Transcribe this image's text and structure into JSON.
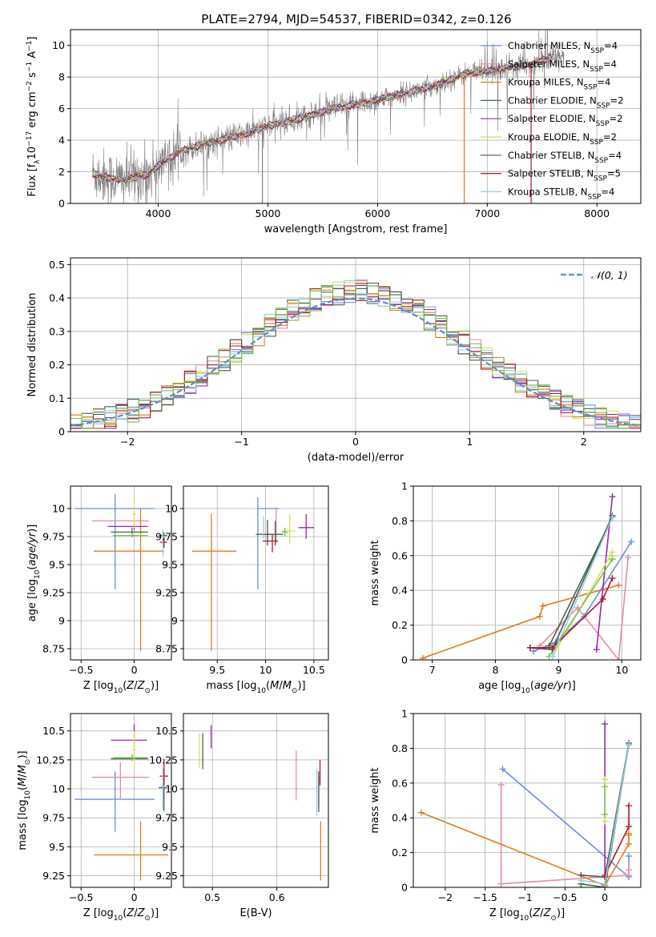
{
  "figure": {
    "title": "PLATE=2794, MJD=54537, FIBERID=0342, z=0.126",
    "colors": {
      "Chabrier MILES": "#6a8fdc",
      "Salpeter MILES": "#e88aa8",
      "Kroupa MILES": "#e07b1f",
      "Chabrier ELODIE": "#3e6b45",
      "Salpeter ELODIE": "#9c27b0",
      "Kroupa ELODIE": "#d9e05a",
      "Chabrier STELIB": "#555555",
      "Salpeter STELIB": "#b2182b",
      "Kroupa STELIB": "#8fd0e0",
      "green_extra": "#7cc242",
      "data": "#808080",
      "gaussian": "#5b8ed8"
    }
  },
  "chart_data": [
    {
      "id": "spectrum",
      "type": "line",
      "xlabel": "wavelength [Angstrom, rest frame]",
      "ylabel": "Flux [f_λ 10^-17 erg cm^-2 s^-1 A^-1]",
      "xlim": [
        3200,
        8400
      ],
      "ylim": [
        0,
        11
      ],
      "xticks": [
        4000,
        5000,
        6000,
        7000,
        8000
      ],
      "yticks": [
        0,
        2,
        4,
        6,
        8,
        10
      ],
      "legend_position": "upper right",
      "legend": [
        {
          "label": "Chabrier MILES, N_SSP=4",
          "key": "Chabrier MILES"
        },
        {
          "label": "Salpeter MILES, N_SSP=4",
          "key": "Salpeter MILES"
        },
        {
          "label": "Kroupa MILES, N_SSP=4",
          "key": "Kroupa MILES"
        },
        {
          "label": "Chabrier ELODIE, N_SSP=2",
          "key": "Chabrier ELODIE"
        },
        {
          "label": "Salpeter ELODIE, N_SSP=2",
          "key": "Salpeter ELODIE"
        },
        {
          "label": "Kroupa ELODIE, N_SSP=2",
          "key": "Kroupa ELODIE"
        },
        {
          "label": "Chabrier STELIB, N_SSP=4",
          "key": "Chabrier STELIB"
        },
        {
          "label": "Salpeter STELIB, N_SSP=5",
          "key": "Salpeter STELIB"
        },
        {
          "label": "Kroupa STELIB, N_SSP=4",
          "key": "Kroupa STELIB"
        }
      ],
      "continuum": [
        [
          3400,
          1.9
        ],
        [
          3550,
          1.6
        ],
        [
          3700,
          1.5
        ],
        [
          3800,
          1.7
        ],
        [
          3900,
          1.8
        ],
        [
          4000,
          2.4
        ],
        [
          4200,
          3.3
        ],
        [
          4500,
          3.9
        ],
        [
          4800,
          4.4
        ],
        [
          5000,
          4.9
        ],
        [
          5300,
          5.4
        ],
        [
          5600,
          6.0
        ],
        [
          5900,
          6.4
        ],
        [
          6200,
          6.9
        ],
        [
          6500,
          7.4
        ],
        [
          6800,
          8.2
        ],
        [
          7100,
          8.5
        ],
        [
          7400,
          8.8
        ],
        [
          7600,
          9.3
        ]
      ]
    },
    {
      "id": "residuals",
      "type": "histogram",
      "xlabel": "(data-model)/error",
      "ylabel": "Normed distribution",
      "xlim": [
        -2.5,
        2.5
      ],
      "ylim": [
        0,
        0.52
      ],
      "xticks": [
        -2,
        -1,
        0,
        1,
        2
      ],
      "yticks": [
        0.0,
        0.1,
        0.2,
        0.3,
        0.4,
        0.5
      ],
      "legend_position": "upper right",
      "legend": [
        {
          "label": "𝒩(0, 1)",
          "key": "gaussian"
        }
      ],
      "bin_width": 0.1
    },
    {
      "id": "age_vs_Z",
      "type": "errorbar",
      "xlabel": "Z [log10(Z/Z⊙)]",
      "ylabel": "age  [log10(age/yr)]",
      "xlim": [
        -0.6,
        0.35
      ],
      "ylim": [
        8.65,
        10.2
      ],
      "xticks": [
        -0.5,
        0.0
      ],
      "yticks": [
        8.75,
        9.0,
        9.25,
        9.5,
        9.75,
        10.0
      ],
      "points": [
        {
          "key": "Chabrier MILES",
          "x": -0.18,
          "y": 10.0,
          "xerr": [
            0.38,
            0.37
          ],
          "yerr": [
            0.72,
            0.13
          ]
        },
        {
          "key": "Salpeter MILES",
          "x": -0.13,
          "y": 9.89,
          "xerr": [
            0.27,
            0.27
          ],
          "yerr": [
            0.0,
            0.0
          ]
        },
        {
          "key": "Kroupa MILES",
          "x": 0.06,
          "y": 9.62,
          "xerr": [
            0.44,
            0.22
          ],
          "yerr": [
            0.89,
            0.38
          ]
        },
        {
          "key": "Chabrier ELODIE",
          "x": -0.02,
          "y": 9.79,
          "xerr": [
            0.2,
            0.15
          ],
          "yerr": [
            0.04,
            0.04
          ]
        },
        {
          "key": "Salpeter ELODIE",
          "x": 0.0,
          "y": 9.84,
          "xerr": [
            0.25,
            0.13
          ],
          "yerr": [
            0.03,
            0.03
          ]
        },
        {
          "key": "Kroupa ELODIE",
          "x": 0.0,
          "y": 9.95,
          "xerr": [
            0.02,
            0.02
          ],
          "yerr": [
            0.12,
            0.15
          ]
        },
        {
          "key": "green_extra",
          "x": -0.02,
          "y": 9.76,
          "xerr": [
            0.18,
            0.15
          ],
          "yerr": [
            0.02,
            0.02
          ]
        },
        {
          "key": "Chabrier STELIB",
          "x": 0.28,
          "y": 9.76,
          "xerr": [
            0.05,
            0.03
          ],
          "yerr": [
            0.05,
            0.03
          ]
        },
        {
          "key": "Salpeter STELIB",
          "x": 0.28,
          "y": 9.7,
          "xerr": [
            0.04,
            0.03
          ],
          "yerr": [
            0.05,
            0.03
          ]
        },
        {
          "key": "Kroupa STELIB",
          "x": 0.27,
          "y": 9.75,
          "xerr": [
            0.02,
            0.02
          ],
          "yerr": [
            0.18,
            0.06
          ]
        }
      ]
    },
    {
      "id": "age_vs_mass",
      "type": "errorbar",
      "xlabel": "mass [log10(M/M⊙)]",
      "ylabel": "",
      "xlim": [
        9.15,
        10.65
      ],
      "ylim": [
        8.65,
        10.2
      ],
      "xticks": [
        9.5,
        10.0,
        10.5
      ],
      "yticks": [
        8.75,
        9.0,
        9.25,
        9.5,
        9.75,
        10.0
      ],
      "points": [
        {
          "key": "Chabrier MILES",
          "x": 9.92,
          "y": 10.0,
          "xerr": [
            0.0,
            0.22
          ],
          "yerr": [
            0.72,
            0.1
          ]
        },
        {
          "key": "Salpeter MILES",
          "x": 10.11,
          "y": 9.89,
          "xerr": [
            0.0,
            0.0
          ],
          "yerr": [
            0.2,
            0.12
          ]
        },
        {
          "key": "Kroupa MILES",
          "x": 9.44,
          "y": 9.62,
          "xerr": [
            0.2,
            0.26
          ],
          "yerr": [
            0.89,
            0.33
          ]
        },
        {
          "key": "Chabrier ELODIE",
          "x": 10.1,
          "y": 9.77,
          "xerr": [
            0.2,
            0.08
          ],
          "yerr": [
            0.1,
            0.12
          ]
        },
        {
          "key": "Salpeter ELODIE",
          "x": 10.42,
          "y": 9.83,
          "xerr": [
            0.08,
            0.08
          ],
          "yerr": [
            0.1,
            0.12
          ]
        },
        {
          "key": "Kroupa ELODIE",
          "x": 10.25,
          "y": 9.8,
          "xerr": [
            0.08,
            0.06
          ],
          "yerr": [
            0.12,
            0.15
          ]
        },
        {
          "key": "green_extra",
          "x": 10.2,
          "y": 9.79,
          "xerr": [
            0.03,
            0.03
          ],
          "yerr": [
            0.04,
            0.04
          ]
        },
        {
          "key": "Chabrier STELIB",
          "x": 10.02,
          "y": 9.77,
          "xerr": [
            0.05,
            0.03
          ],
          "yerr": [
            0.1,
            0.13
          ]
        },
        {
          "key": "Salpeter STELIB",
          "x": 10.07,
          "y": 9.71,
          "xerr": [
            0.1,
            0.06
          ],
          "yerr": [
            0.1,
            0.06
          ]
        },
        {
          "key": "Kroupa STELIB",
          "x": 9.98,
          "y": 9.83,
          "xerr": [
            0.0,
            0.0
          ],
          "yerr": [
            0.1,
            0.1
          ]
        }
      ]
    },
    {
      "id": "mass_weight_vs_age",
      "type": "line",
      "xlabel": "age  [log10(age/yr)]",
      "ylabel": "mass weight",
      "xlim": [
        6.7,
        10.3
      ],
      "ylim": [
        0,
        1.0
      ],
      "xticks": [
        7,
        8,
        9,
        10
      ],
      "yticks": [
        0.0,
        0.2,
        0.4,
        0.6,
        0.8,
        1.0
      ],
      "series": [
        {
          "key": "Chabrier MILES",
          "x": [
            8.6,
            8.95,
            9.4,
            10.15
          ],
          "y": [
            0.05,
            0.1,
            0.25,
            0.68
          ]
        },
        {
          "key": "Salpeter MILES",
          "x": [
            8.7,
            9.3,
            9.95,
            10.1
          ],
          "y": [
            0.08,
            0.3,
            0.0,
            0.59
          ]
        },
        {
          "key": "Kroupa MILES",
          "x": [
            6.85,
            8.7,
            8.75,
            9.95
          ],
          "y": [
            0.01,
            0.25,
            0.31,
            0.43
          ]
        },
        {
          "key": "Chabrier ELODIE",
          "x": [
            8.85,
            9.85
          ],
          "y": [
            0.08,
            0.82
          ]
        },
        {
          "key": "Salpeter ELODIE",
          "x": [
            9.6,
            9.85
          ],
          "y": [
            0.06,
            0.94
          ]
        },
        {
          "key": "Kroupa ELODIE",
          "x": [
            8.9,
            9.85
          ],
          "y": [
            0.02,
            0.62
          ]
        },
        {
          "key": "green_extra",
          "x": [
            8.85,
            9.85
          ],
          "y": [
            0.02,
            0.58
          ]
        },
        {
          "key": "Chabrier STELIB",
          "x": [
            8.55,
            8.9,
            9.85
          ],
          "y": [
            0.07,
            0.06,
            0.83
          ]
        },
        {
          "key": "Salpeter STELIB",
          "x": [
            8.55,
            8.9,
            9.7,
            9.85
          ],
          "y": [
            0.07,
            0.07,
            0.35,
            0.47
          ]
        },
        {
          "key": "Kroupa STELIB",
          "x": [
            8.9,
            9.85
          ],
          "y": [
            0.02,
            0.82
          ]
        }
      ]
    },
    {
      "id": "mass_vs_Z",
      "type": "errorbar",
      "xlabel": "Z [log10(Z/Z⊙)]",
      "ylabel": "mass [log10(M/M⊙)]",
      "xlim": [
        -0.6,
        0.35
      ],
      "ylim": [
        9.15,
        10.65
      ],
      "xticks": [
        -0.5,
        0.0
      ],
      "yticks": [
        9.25,
        9.5,
        9.75,
        10.0,
        10.25,
        10.5
      ],
      "points": [
        {
          "key": "Chabrier MILES",
          "x": -0.18,
          "y": 9.91,
          "xerr": [
            0.38,
            0.37
          ],
          "yerr": [
            0.28,
            0.24
          ]
        },
        {
          "key": "Salpeter MILES",
          "x": -0.13,
          "y": 10.1,
          "xerr": [
            0.27,
            0.27
          ],
          "yerr": [
            0.19,
            0.13
          ]
        },
        {
          "key": "Kroupa MILES",
          "x": 0.06,
          "y": 9.43,
          "xerr": [
            0.44,
            0.26
          ],
          "yerr": [
            0.22,
            0.29
          ]
        },
        {
          "key": "Chabrier ELODIE",
          "x": -0.02,
          "y": 10.26,
          "xerr": [
            0.2,
            0.15
          ],
          "yerr": [
            0.0,
            0.0
          ]
        },
        {
          "key": "Salpeter ELODIE",
          "x": 0.0,
          "y": 10.42,
          "xerr": [
            0.22,
            0.12
          ],
          "yerr": [
            0.05,
            0.14
          ]
        },
        {
          "key": "Kroupa ELODIE",
          "x": 0.0,
          "y": 10.34,
          "xerr": [
            0.02,
            0.02
          ],
          "yerr": [
            0.18,
            0.16
          ]
        },
        {
          "key": "green_extra",
          "x": -0.02,
          "y": 10.27,
          "xerr": [
            0.18,
            0.15
          ],
          "yerr": [
            0.03,
            0.03
          ]
        },
        {
          "key": "Chabrier STELIB",
          "x": 0.28,
          "y": 10.01,
          "xerr": [
            0.05,
            0.03
          ],
          "yerr": [
            0.2,
            0.15
          ]
        },
        {
          "key": "Salpeter STELIB",
          "x": 0.28,
          "y": 10.11,
          "xerr": [
            0.04,
            0.04
          ],
          "yerr": [
            0.07,
            0.15
          ]
        },
        {
          "key": "Kroupa STELIB",
          "x": 0.27,
          "y": 10.02,
          "xerr": [
            0.02,
            0.02
          ],
          "yerr": [
            0.2,
            0.16
          ]
        }
      ]
    },
    {
      "id": "mass_vs_EBV",
      "type": "errorbar",
      "xlabel": "E(B-V)",
      "ylabel": "",
      "xlim": [
        0.455,
        0.68
      ],
      "ylim": [
        9.15,
        10.65
      ],
      "xticks": [
        0.5,
        0.6
      ],
      "yticks": [
        9.25,
        9.5,
        9.75,
        10.0,
        10.25,
        10.5
      ],
      "points": [
        {
          "key": "Chabrier MILES",
          "x": 0.665,
          "y": 10.0,
          "xerr": [
            0.0,
            0.0
          ],
          "yerr": [
            0.15,
            0.1
          ]
        },
        {
          "key": "Salpeter MILES",
          "x": 0.63,
          "y": 10.1,
          "xerr": [
            0.0,
            0.0
          ],
          "yerr": [
            0.2,
            0.23
          ]
        },
        {
          "key": "Kroupa MILES",
          "x": 0.668,
          "y": 9.43,
          "xerr": [
            0.0,
            0.0
          ],
          "yerr": [
            0.22,
            0.29
          ]
        },
        {
          "key": "Chabrier ELODIE",
          "x": 0.485,
          "y": 10.3,
          "xerr": [
            0.0,
            0.0
          ],
          "yerr": [
            0.13,
            0.18
          ]
        },
        {
          "key": "Salpeter ELODIE",
          "x": 0.498,
          "y": 10.45,
          "xerr": [
            0.0,
            0.0
          ],
          "yerr": [
            0.1,
            0.1
          ]
        },
        {
          "key": "Kroupa ELODIE",
          "x": 0.48,
          "y": 10.33,
          "xerr": [
            0.0,
            0.0
          ],
          "yerr": [
            0.15,
            0.15
          ]
        },
        {
          "key": "Chabrier STELIB",
          "x": 0.665,
          "y": 10.0,
          "xerr": [
            0.0,
            0.0
          ],
          "yerr": [
            0.2,
            0.15
          ]
        },
        {
          "key": "Salpeter STELIB",
          "x": 0.667,
          "y": 10.1,
          "xerr": [
            0.0,
            0.0
          ],
          "yerr": [
            0.07,
            0.15
          ]
        },
        {
          "key": "Kroupa STELIB",
          "x": 0.662,
          "y": 9.97,
          "xerr": [
            0.0,
            0.0
          ],
          "yerr": [
            0.2,
            0.2
          ]
        }
      ]
    },
    {
      "id": "mass_weight_vs_Z",
      "type": "line",
      "xlabel": "Z [log10(Z/Z⊙)]",
      "ylabel": "mass weight",
      "xlim": [
        -2.4,
        0.45
      ],
      "ylim": [
        0,
        1.0
      ],
      "xticks": [
        -2.0,
        -1.5,
        -1.0,
        -0.5,
        0.0
      ],
      "yticks": [
        0.0,
        0.2,
        0.4,
        0.6,
        0.8,
        1.0
      ],
      "series": [
        {
          "key": "Chabrier MILES",
          "x": [
            -1.28,
            0.3,
            0.3
          ],
          "y": [
            0.68,
            0.06,
            0.18
          ]
        },
        {
          "key": "Salpeter MILES",
          "x": [
            -1.3,
            -1.3,
            0.3,
            0.3
          ],
          "y": [
            0.59,
            0.02,
            0.07,
            0.1
          ]
        },
        {
          "key": "Kroupa MILES",
          "x": [
            -2.3,
            0.0,
            0.3,
            0.3,
            0.3
          ],
          "y": [
            0.43,
            0.01,
            0.25,
            0.31,
            0.3
          ]
        },
        {
          "key": "Chabrier ELODIE",
          "x": [
            -0.3,
            0.0,
            0.3
          ],
          "y": [
            0.02,
            0.0,
            0.82
          ]
        },
        {
          "key": "Salpeter ELODIE",
          "x": [
            0.0,
            0.0
          ],
          "y": [
            0.06,
            0.94
          ]
        },
        {
          "key": "Kroupa ELODIE",
          "x": [
            0.0,
            0.0
          ],
          "y": [
            0.38,
            0.62
          ]
        },
        {
          "key": "green_extra",
          "x": [
            0.0,
            0.0
          ],
          "y": [
            0.42,
            0.58
          ]
        },
        {
          "key": "Chabrier STELIB",
          "x": [
            -0.3,
            0.0,
            0.3
          ],
          "y": [
            0.07,
            0.06,
            0.83
          ]
        },
        {
          "key": "Salpeter STELIB",
          "x": [
            0.0,
            0.3,
            0.3
          ],
          "y": [
            0.07,
            0.35,
            0.47
          ]
        },
        {
          "key": "Kroupa STELIB",
          "x": [
            -0.3,
            0.0,
            0.3
          ],
          "y": [
            0.04,
            0.02,
            0.82
          ]
        }
      ]
    }
  ]
}
